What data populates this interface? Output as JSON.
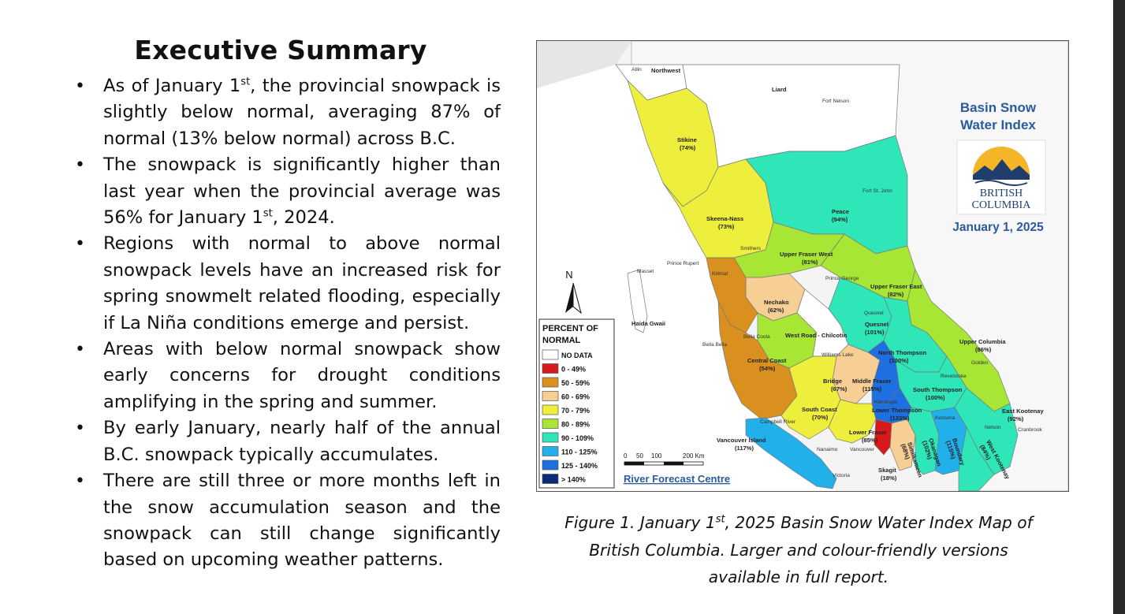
{
  "summary": {
    "title": "Executive Summary",
    "bullets": [
      {
        "before": "As of January 1",
        "sup": "st",
        "after": ", the provincial snowpack is slightly below normal, averaging 87% of normal (13% below normal) across B.C."
      },
      {
        "before": "The snowpack is significantly higher than last year when the provincial average was 56% for January 1",
        "sup": "st",
        "after": ", 2024."
      },
      {
        "before": "Regions with normal to above normal snowpack levels have an increased risk for spring snowmelt related flooding, especially if La Niña conditions emerge and persist.",
        "sup": "",
        "after": ""
      },
      {
        "before": "Areas with below normal snowpack show early concerns for drought conditions amplifying in the spring and summer.",
        "sup": "",
        "after": ""
      },
      {
        "before": "By early January, nearly half of the annual B.C. snowpack typically accumulates.",
        "sup": "",
        "after": ""
      },
      {
        "before": "There are still three or more months left in the snow accumulation season and the snowpack can still change significantly based on upcoming weather patterns.",
        "sup": "",
        "after": ""
      }
    ]
  },
  "map": {
    "index_title_line1": "Basin Snow",
    "index_title_line2": "Water Index",
    "logo_line1": "BRITISH",
    "logo_line2": "COLUMBIA",
    "date": "January 1, 2025",
    "north_label": "N",
    "legend_title_line1": "PERCENT OF",
    "legend_title_line2": "NORMAL",
    "legend": [
      {
        "label": "NO DATA",
        "color": "#ffffff"
      },
      {
        "label": "0 - 49%",
        "color": "#d7191c"
      },
      {
        "label": "50 - 59%",
        "color": "#d9901f"
      },
      {
        "label": "60 - 69%",
        "color": "#f7cf94"
      },
      {
        "label": "70 - 79%",
        "color": "#f0ee3a"
      },
      {
        "label": "80 - 89%",
        "color": "#a7e635"
      },
      {
        "label": "90 - 109%",
        "color": "#2ee6b8"
      },
      {
        "label": "110 - 125%",
        "color": "#21b0ea"
      },
      {
        "label": "125 - 140%",
        "color": "#1e6fe0"
      },
      {
        "label": "> 140%",
        "color": "#0b2a78"
      }
    ],
    "scale_labels": [
      "0",
      "50",
      "100",
      "200 Km"
    ],
    "centre": "River Forecast Centre",
    "regions": [
      {
        "name": "Northwest",
        "pct": ""
      },
      {
        "name": "Stikine",
        "pct": "(74%)"
      },
      {
        "name": "Liard",
        "pct": ""
      },
      {
        "name": "Skeena-Nass",
        "pct": "(73%)"
      },
      {
        "name": "Peace",
        "pct": "(94%)"
      },
      {
        "name": "Upper Fraser West",
        "pct": "(81%)"
      },
      {
        "name": "Upper Fraser East",
        "pct": "(82%)"
      },
      {
        "name": "Nechako",
        "pct": "(62%)"
      },
      {
        "name": "Haida Gwaii",
        "pct": ""
      },
      {
        "name": "Quesnel",
        "pct": "(101%)"
      },
      {
        "name": "West Road - Chilcotin",
        "pct": ""
      },
      {
        "name": "Upper Columbia",
        "pct": "(86%)"
      },
      {
        "name": "North Thompson",
        "pct": "(100%)"
      },
      {
        "name": "Central Coast",
        "pct": "(54%)"
      },
      {
        "name": "Bridge",
        "pct": "(67%)"
      },
      {
        "name": "Middle Fraser",
        "pct": "(115%)"
      },
      {
        "name": "South Thompson",
        "pct": "(100%)"
      },
      {
        "name": "South Coast",
        "pct": "(70%)"
      },
      {
        "name": "Lower Thompson",
        "pct": "(133%)"
      },
      {
        "name": "East Kootenay",
        "pct": "(92%)"
      },
      {
        "name": "Vancouver Island",
        "pct": "(117%)"
      },
      {
        "name": "Lower Fraser",
        "pct": "(85%)"
      },
      {
        "name": "Skagit",
        "pct": "(18%)"
      },
      {
        "name": "Similkameen",
        "pct": "(68%)"
      },
      {
        "name": "Okanagan",
        "pct": "(102%)"
      },
      {
        "name": "Boundary",
        "pct": "(115%)"
      },
      {
        "name": "West Kootenay",
        "pct": "(84%)"
      }
    ],
    "cities": [
      "Atlin",
      "Fort Nelson",
      "Fort St. John",
      "Smithers",
      "Prince Rupert",
      "Kitimat",
      "Masset",
      "Prince George",
      "Quesnel",
      "Bella Bella",
      "Bella Coola",
      "Williams Lake",
      "Revelstoke",
      "Golden",
      "Kamloops",
      "Kelowna",
      "Nelson",
      "Cranbrook",
      "Campbell River",
      "Nanaimo",
      "Vancouver",
      "Victoria"
    ]
  },
  "caption": {
    "before": "Figure 1. January 1",
    "sup": "st",
    "after": ", 2025 Basin Snow Water Index Map of British Columbia. Larger and colour-friendly versions available in full report."
  }
}
